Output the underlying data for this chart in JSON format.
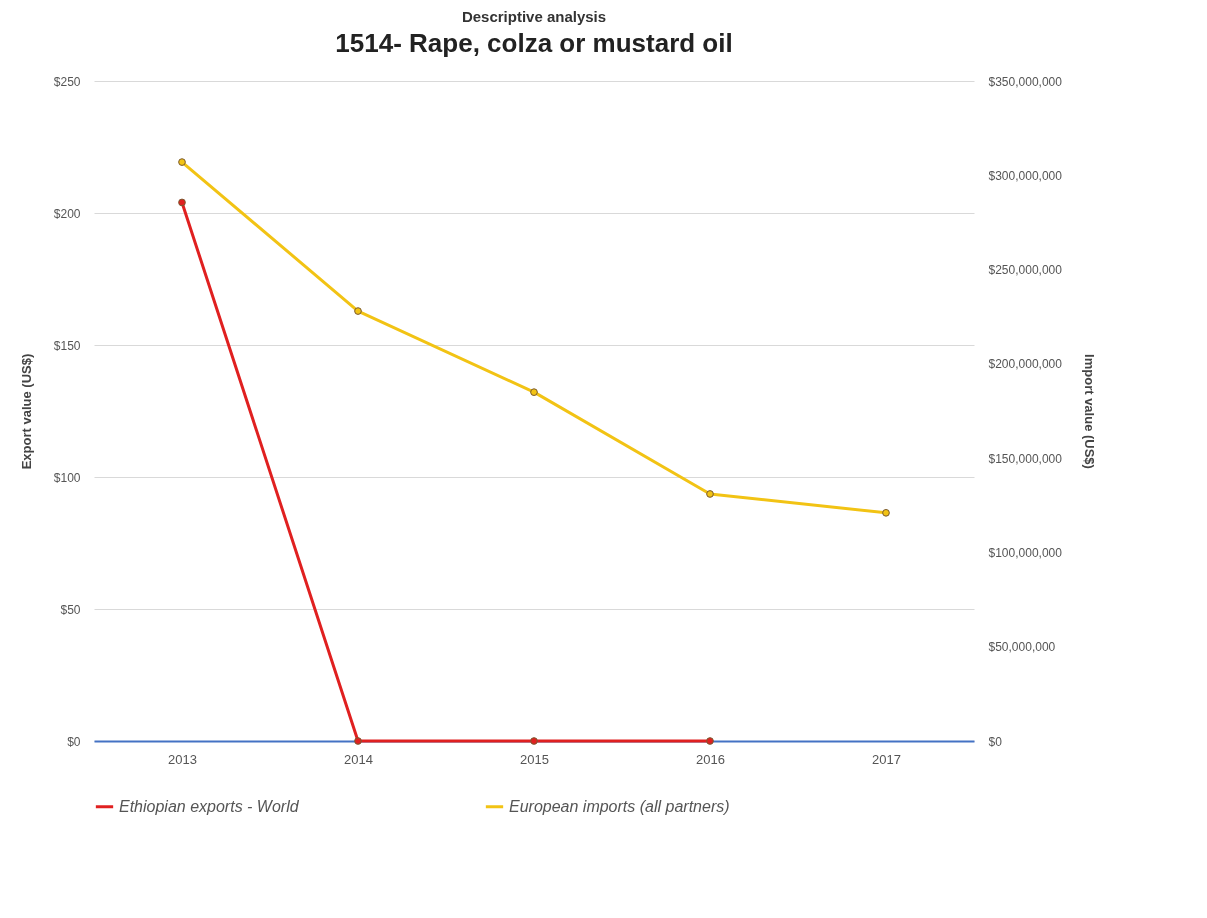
{
  "chart_data": {
    "type": "line",
    "subtitle": "Descriptive analysis",
    "title": "1514- Rape, colza or mustard oil",
    "ylabel": "Export  value (US$)",
    "y2label": "Import value (US$)",
    "categories": [
      "2013",
      "2014",
      "2015",
      "2016",
      "2017"
    ],
    "series": [
      {
        "name": "Ethiopian exports - World",
        "color": "#e02020",
        "values": [
          204,
          0,
          0,
          0,
          null
        ]
      },
      {
        "name": "European imports (all partners)",
        "color": "#f2c314",
        "axis": "y2",
        "values": [
          307000000,
          228000000,
          185000000,
          131000000,
          121000000
        ]
      }
    ],
    "ylim": [
      0,
      250
    ],
    "yticks": [
      {
        "value": 0,
        "label": "$0"
      },
      {
        "value": 50,
        "label": "$50"
      },
      {
        "value": 100,
        "label": "$100"
      },
      {
        "value": 150,
        "label": "$150"
      },
      {
        "value": 200,
        "label": "$200"
      },
      {
        "value": 250,
        "label": "$250"
      }
    ],
    "y2lim": [
      0,
      350000000
    ],
    "y2ticks": [
      {
        "value": 0,
        "label": "$0"
      },
      {
        "value": 50000000,
        "label": "$50,000,000"
      },
      {
        "value": 100000000,
        "label": "$100,000,000"
      },
      {
        "value": 150000000,
        "label": "$150,000,000"
      },
      {
        "value": 200000000,
        "label": "$200,000,000"
      },
      {
        "value": 250000000,
        "label": "$250,000,000"
      },
      {
        "value": 300000000,
        "label": "$300,000,000"
      },
      {
        "value": 350000000,
        "label": "$350,000,000"
      }
    ],
    "grid": "y",
    "legend": "bottom",
    "marker": "circle",
    "line_style": "solid"
  }
}
